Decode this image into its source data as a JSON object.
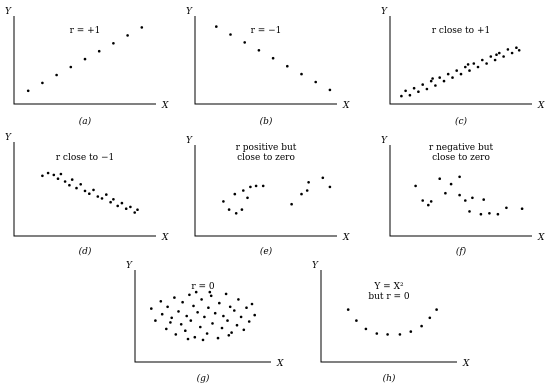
{
  "chart_data": [
    {
      "type": "scatter",
      "caption": "(a)",
      "xlabel": "X",
      "ylabel": "Y",
      "annotation": [
        "r = +1"
      ],
      "xlim": [
        0,
        10
      ],
      "ylim": [
        0,
        10
      ],
      "points": [
        [
          1,
          1.5
        ],
        [
          2,
          2.4
        ],
        [
          3,
          3.3
        ],
        [
          4,
          4.2
        ],
        [
          5,
          5.1
        ],
        [
          6,
          6.0
        ],
        [
          7,
          6.9
        ],
        [
          8,
          7.8
        ],
        [
          9,
          8.7
        ]
      ]
    },
    {
      "type": "scatter",
      "caption": "(b)",
      "xlabel": "X",
      "ylabel": "Y",
      "annotation": [
        "r = −1"
      ],
      "xlim": [
        0,
        10
      ],
      "ylim": [
        0,
        10
      ],
      "points": [
        [
          1.5,
          8.8
        ],
        [
          2.5,
          7.9
        ],
        [
          3.5,
          7.0
        ],
        [
          4.5,
          6.1
        ],
        [
          5.5,
          5.2
        ],
        [
          6.5,
          4.3
        ],
        [
          7.5,
          3.4
        ],
        [
          8.5,
          2.5
        ],
        [
          9.5,
          1.6
        ]
      ]
    },
    {
      "type": "scatter",
      "caption": "(c)",
      "xlabel": "X",
      "ylabel": "Y",
      "annotation": [
        "r close to +1"
      ],
      "xlim": [
        0,
        10
      ],
      "ylim": [
        0,
        10
      ],
      "points": [
        [
          0.8,
          0.9
        ],
        [
          1.1,
          1.5
        ],
        [
          1.4,
          1.0
        ],
        [
          1.7,
          1.8
        ],
        [
          2.0,
          1.4
        ],
        [
          2.3,
          2.2
        ],
        [
          2.6,
          1.7
        ],
        [
          2.9,
          2.6
        ],
        [
          3.2,
          2.1
        ],
        [
          3.5,
          3.0
        ],
        [
          3.8,
          2.6
        ],
        [
          4.1,
          3.4
        ],
        [
          4.4,
          3.0
        ],
        [
          4.7,
          3.8
        ],
        [
          5.0,
          3.4
        ],
        [
          5.3,
          4.2
        ],
        [
          5.6,
          3.8
        ],
        [
          5.9,
          4.6
        ],
        [
          6.2,
          4.2
        ],
        [
          6.5,
          5.0
        ],
        [
          6.8,
          4.6
        ],
        [
          7.1,
          5.4
        ],
        [
          7.4,
          5.0
        ],
        [
          7.7,
          5.8
        ],
        [
          8.0,
          5.4
        ],
        [
          8.3,
          6.2
        ],
        [
          8.6,
          5.8
        ],
        [
          8.9,
          6.4
        ],
        [
          9.1,
          6.1
        ],
        [
          3.0,
          2.9
        ],
        [
          5.5,
          4.5
        ],
        [
          7.5,
          5.6
        ]
      ]
    },
    {
      "type": "scatter",
      "caption": "(d)",
      "xlabel": "X",
      "ylabel": "Y",
      "annotation": [
        "r close to −1"
      ],
      "xlim": [
        0,
        10
      ],
      "ylim": [
        0,
        10
      ],
      "points": [
        [
          2.0,
          6.4
        ],
        [
          2.4,
          6.7
        ],
        [
          2.8,
          6.5
        ],
        [
          3.1,
          6.1
        ],
        [
          3.3,
          6.6
        ],
        [
          3.6,
          5.8
        ],
        [
          3.9,
          5.4
        ],
        [
          4.1,
          6.0
        ],
        [
          4.4,
          5.1
        ],
        [
          4.7,
          5.5
        ],
        [
          5.0,
          4.8
        ],
        [
          5.3,
          4.5
        ],
        [
          5.6,
          4.9
        ],
        [
          5.9,
          4.2
        ],
        [
          6.2,
          4.0
        ],
        [
          6.5,
          4.4
        ],
        [
          6.8,
          3.6
        ],
        [
          7.0,
          3.9
        ],
        [
          7.3,
          3.2
        ],
        [
          7.6,
          3.5
        ],
        [
          7.9,
          2.9
        ],
        [
          8.2,
          3.1
        ],
        [
          8.5,
          2.5
        ],
        [
          8.7,
          2.8
        ]
      ]
    },
    {
      "type": "scatter",
      "caption": "(e)",
      "xlabel": "X",
      "ylabel": "Y",
      "annotation": [
        "r positive but",
        "close to zero"
      ],
      "xlim": [
        0,
        10
      ],
      "ylim": [
        0,
        10
      ],
      "points": [
        [
          2.0,
          3.8
        ],
        [
          2.4,
          2.9
        ],
        [
          2.8,
          4.6
        ],
        [
          2.9,
          2.5
        ],
        [
          3.3,
          2.9
        ],
        [
          3.4,
          5.0
        ],
        [
          3.7,
          4.2
        ],
        [
          3.9,
          5.4
        ],
        [
          4.3,
          5.5
        ],
        [
          4.8,
          5.5
        ],
        [
          6.8,
          3.5
        ],
        [
          7.5,
          4.6
        ],
        [
          7.9,
          5.0
        ],
        [
          8.0,
          5.9
        ],
        [
          9.0,
          6.4
        ],
        [
          9.5,
          5.4
        ]
      ]
    },
    {
      "type": "scatter",
      "caption": "(f)",
      "xlabel": "X",
      "ylabel": "Y",
      "annotation": [
        "r negative but",
        "close to zero"
      ],
      "xlim": [
        0,
        10
      ],
      "ylim": [
        0,
        10
      ],
      "points": [
        [
          1.8,
          5.5
        ],
        [
          2.3,
          3.9
        ],
        [
          2.7,
          3.4
        ],
        [
          2.9,
          3.8
        ],
        [
          3.5,
          6.3
        ],
        [
          3.9,
          4.7
        ],
        [
          4.3,
          5.7
        ],
        [
          4.9,
          6.5
        ],
        [
          4.9,
          4.5
        ],
        [
          5.3,
          3.9
        ],
        [
          5.6,
          2.7
        ],
        [
          6.4,
          2.4
        ],
        [
          6.6,
          4.0
        ],
        [
          7.0,
          2.5
        ],
        [
          7.6,
          2.4
        ],
        [
          8.2,
          3.1
        ],
        [
          9.3,
          3.0
        ],
        [
          5.8,
          4.2
        ]
      ]
    },
    {
      "type": "scatter",
      "caption": "(g)",
      "xlabel": "X",
      "ylabel": "Y",
      "annotation": [
        "r = 0"
      ],
      "xlim": [
        0,
        10
      ],
      "ylim": [
        0,
        10
      ],
      "points": [
        [
          1.2,
          5.8
        ],
        [
          1.5,
          4.5
        ],
        [
          1.9,
          6.6
        ],
        [
          2.0,
          5.2
        ],
        [
          2.3,
          3.6
        ],
        [
          2.4,
          6.0
        ],
        [
          2.7,
          4.8
        ],
        [
          2.9,
          7.0
        ],
        [
          3.0,
          3.0
        ],
        [
          3.2,
          5.5
        ],
        [
          3.4,
          4.1
        ],
        [
          3.5,
          6.5
        ],
        [
          3.7,
          3.4
        ],
        [
          3.8,
          5.0
        ],
        [
          4.0,
          7.3
        ],
        [
          4.1,
          4.5
        ],
        [
          4.3,
          6.1
        ],
        [
          4.4,
          2.7
        ],
        [
          4.6,
          5.4
        ],
        [
          4.8,
          3.8
        ],
        [
          4.9,
          6.8
        ],
        [
          5.1,
          4.9
        ],
        [
          5.3,
          3.1
        ],
        [
          5.4,
          5.9
        ],
        [
          5.6,
          7.2
        ],
        [
          5.7,
          4.2
        ],
        [
          5.9,
          5.3
        ],
        [
          6.1,
          2.6
        ],
        [
          6.2,
          6.4
        ],
        [
          6.4,
          3.7
        ],
        [
          6.5,
          5.0
        ],
        [
          6.7,
          7.4
        ],
        [
          6.8,
          4.5
        ],
        [
          7.0,
          6.0
        ],
        [
          7.1,
          3.2
        ],
        [
          7.3,
          5.6
        ],
        [
          7.5,
          4.0
        ],
        [
          7.6,
          6.8
        ],
        [
          7.8,
          4.9
        ],
        [
          8.0,
          3.5
        ],
        [
          8.2,
          5.9
        ],
        [
          8.4,
          4.4
        ],
        [
          8.6,
          6.3
        ],
        [
          8.8,
          5.1
        ],
        [
          5.0,
          2.4
        ],
        [
          3.9,
          2.5
        ],
        [
          6.9,
          2.9
        ],
        [
          5.5,
          7.6
        ],
        [
          4.5,
          7.6
        ],
        [
          2.6,
          4.3
        ]
      ]
    },
    {
      "type": "scatter",
      "caption": "(h)",
      "xlabel": "X",
      "ylabel": "Y",
      "annotation": [
        "Y = X²",
        "but r = 0"
      ],
      "xlim": [
        0,
        10
      ],
      "ylim": [
        0,
        10
      ],
      "points": [
        [
          2.0,
          5.7
        ],
        [
          2.6,
          4.5
        ],
        [
          3.3,
          3.6
        ],
        [
          4.1,
          3.1
        ],
        [
          4.9,
          3.0
        ],
        [
          5.8,
          3.0
        ],
        [
          6.6,
          3.3
        ],
        [
          7.4,
          3.9
        ],
        [
          8.0,
          4.8
        ],
        [
          8.5,
          5.7
        ]
      ]
    }
  ]
}
